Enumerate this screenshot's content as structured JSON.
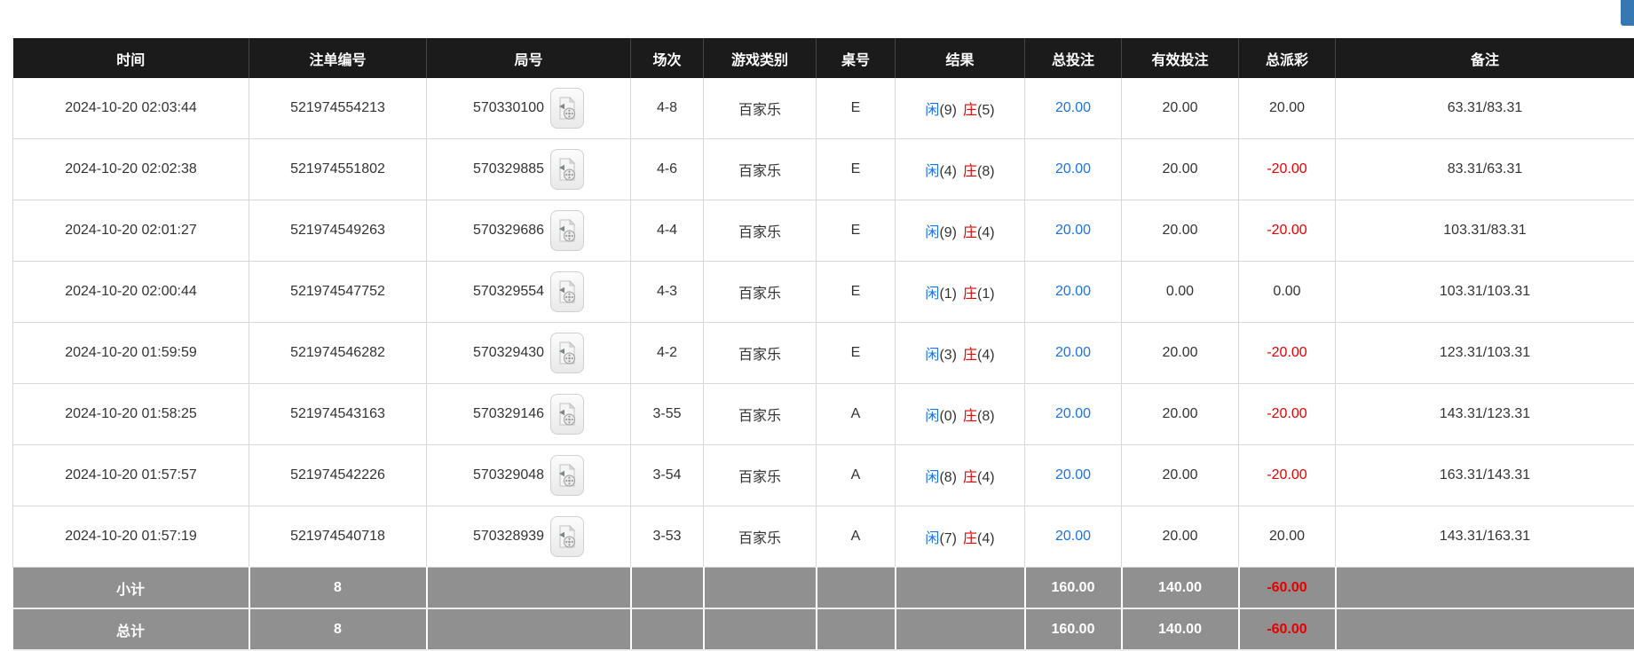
{
  "colors": {
    "header_bg": "#1b1b1b",
    "summary_bg": "#909090",
    "player_blue": "#1a73e8",
    "banker_red": "#e60000",
    "total_bet_blue": "#1a73e8",
    "negative_red": "#e60000",
    "partial_button_blue": "#3677b4"
  },
  "table": {
    "columns": [
      {
        "key": "time",
        "label": "时间"
      },
      {
        "key": "bet_id",
        "label": "注单编号"
      },
      {
        "key": "round_id",
        "label": "局号"
      },
      {
        "key": "session",
        "label": "场次"
      },
      {
        "key": "game_type",
        "label": "游戏类别"
      },
      {
        "key": "table_no",
        "label": "桌号"
      },
      {
        "key": "result",
        "label": "结果"
      },
      {
        "key": "total_bet",
        "label": "总投注"
      },
      {
        "key": "valid_bet",
        "label": "有效投注"
      },
      {
        "key": "payout",
        "label": "总派彩"
      },
      {
        "key": "remark",
        "label": "备注"
      }
    ],
    "rows": [
      {
        "time": "2024-10-20 02:03:44",
        "bet_id": "521974554213",
        "round_id": "570330100",
        "session": "4-8",
        "game_type": "百家乐",
        "table_no": "E",
        "result": {
          "player": "闲",
          "player_score": "(9)",
          "banker": "庄",
          "banker_score": "(5)"
        },
        "total_bet": "20.00",
        "valid_bet": "20.00",
        "payout": "20.00",
        "remark": "63.31/83.31"
      },
      {
        "time": "2024-10-20 02:02:38",
        "bet_id": "521974551802",
        "round_id": "570329885",
        "session": "4-6",
        "game_type": "百家乐",
        "table_no": "E",
        "result": {
          "player": "闲",
          "player_score": "(4)",
          "banker": "庄",
          "banker_score": "(8)"
        },
        "total_bet": "20.00",
        "valid_bet": "20.00",
        "payout": "-20.00",
        "remark": "83.31/63.31"
      },
      {
        "time": "2024-10-20 02:01:27",
        "bet_id": "521974549263",
        "round_id": "570329686",
        "session": "4-4",
        "game_type": "百家乐",
        "table_no": "E",
        "result": {
          "player": "闲",
          "player_score": "(9)",
          "banker": "庄",
          "banker_score": "(4)"
        },
        "total_bet": "20.00",
        "valid_bet": "20.00",
        "payout": "-20.00",
        "remark": "103.31/83.31"
      },
      {
        "time": "2024-10-20 02:00:44",
        "bet_id": "521974547752",
        "round_id": "570329554",
        "session": "4-3",
        "game_type": "百家乐",
        "table_no": "E",
        "result": {
          "player": "闲",
          "player_score": "(1)",
          "banker": "庄",
          "banker_score": "(1)"
        },
        "total_bet": "20.00",
        "valid_bet": "0.00",
        "payout": "0.00",
        "remark": "103.31/103.31"
      },
      {
        "time": "2024-10-20 01:59:59",
        "bet_id": "521974546282",
        "round_id": "570329430",
        "session": "4-2",
        "game_type": "百家乐",
        "table_no": "E",
        "result": {
          "player": "闲",
          "player_score": "(3)",
          "banker": "庄",
          "banker_score": "(4)"
        },
        "total_bet": "20.00",
        "valid_bet": "20.00",
        "payout": "-20.00",
        "remark": "123.31/103.31"
      },
      {
        "time": "2024-10-20 01:58:25",
        "bet_id": "521974543163",
        "round_id": "570329146",
        "session": "3-55",
        "game_type": "百家乐",
        "table_no": "A",
        "result": {
          "player": "闲",
          "player_score": "(0)",
          "banker": "庄",
          "banker_score": "(8)"
        },
        "total_bet": "20.00",
        "valid_bet": "20.00",
        "payout": "-20.00",
        "remark": "143.31/123.31"
      },
      {
        "time": "2024-10-20 01:57:57",
        "bet_id": "521974542226",
        "round_id": "570329048",
        "session": "3-54",
        "game_type": "百家乐",
        "table_no": "A",
        "result": {
          "player": "闲",
          "player_score": "(8)",
          "banker": "庄",
          "banker_score": "(4)"
        },
        "total_bet": "20.00",
        "valid_bet": "20.00",
        "payout": "-20.00",
        "remark": "163.31/143.31"
      },
      {
        "time": "2024-10-20 01:57:19",
        "bet_id": "521974540718",
        "round_id": "570328939",
        "session": "3-53",
        "game_type": "百家乐",
        "table_no": "A",
        "result": {
          "player": "闲",
          "player_score": "(7)",
          "banker": "庄",
          "banker_score": "(4)"
        },
        "total_bet": "20.00",
        "valid_bet": "20.00",
        "payout": "20.00",
        "remark": "143.31/163.31"
      }
    ],
    "summary_rows": [
      {
        "label": "小计",
        "count": "8",
        "total_bet": "160.00",
        "valid_bet": "140.00",
        "payout": "-60.00"
      },
      {
        "label": "总计",
        "count": "8",
        "total_bet": "160.00",
        "valid_bet": "140.00",
        "payout": "-60.00"
      }
    ]
  }
}
